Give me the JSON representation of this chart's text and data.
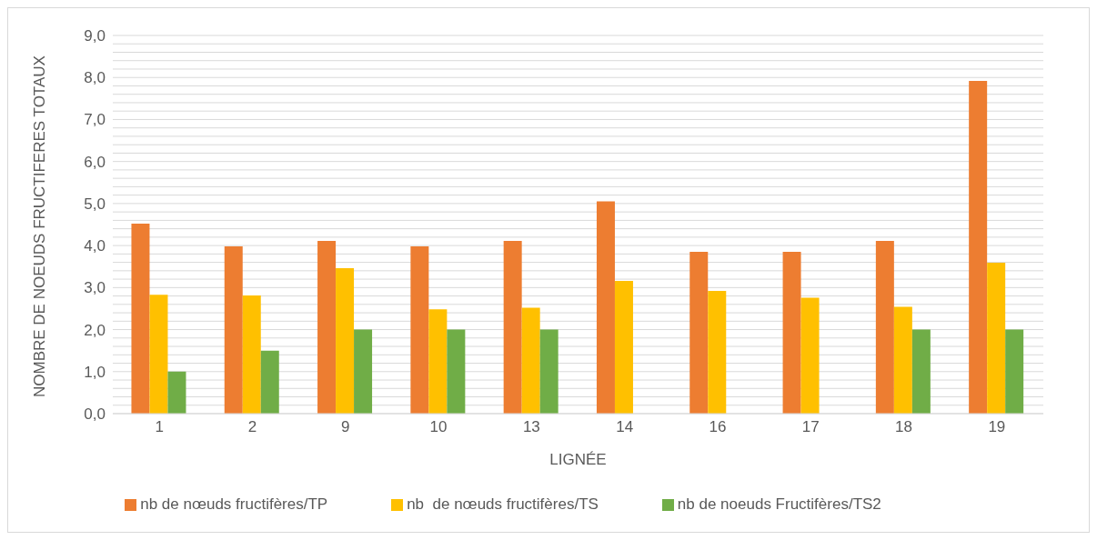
{
  "chart_data": {
    "type": "bar",
    "xlabel": "LIGNÉE",
    "ylabel": "NOMBRE  DE NOEUDS FRUCTIFERES TOTAUX",
    "categories": [
      "1",
      "2",
      "9",
      "10",
      "13",
      "14",
      "16",
      "17",
      "18",
      "19"
    ],
    "series": [
      {
        "name": "nb de nœuds fructifères/TP",
        "color": "#ed7d31",
        "values": [
          4.52,
          3.98,
          4.11,
          3.98,
          4.11,
          5.05,
          3.85,
          3.85,
          4.11,
          7.92
        ]
      },
      {
        "name": "nb  de nœuds fructifères/TS",
        "color": "#ffc000",
        "values": [
          2.83,
          2.81,
          3.46,
          2.48,
          2.52,
          3.16,
          2.92,
          2.76,
          2.54,
          3.59
        ]
      },
      {
        "name": "nb de noeuds Fructifères/TS2",
        "color": "#70ad47",
        "values": [
          1.0,
          1.5,
          2.0,
          2.0,
          2.0,
          null,
          null,
          null,
          2.0,
          2.0
        ]
      }
    ],
    "ylim": [
      0,
      9
    ],
    "yticks": [
      {
        "value": 0,
        "label": "0,0"
      },
      {
        "value": 0.2,
        "label": null
      },
      {
        "value": 0.4,
        "label": null
      },
      {
        "value": 0.6,
        "label": null
      },
      {
        "value": 0.8,
        "label": null
      },
      {
        "value": 1,
        "label": "1,0"
      },
      {
        "value": 1.2,
        "label": null
      },
      {
        "value": 1.4,
        "label": null
      },
      {
        "value": 1.6,
        "label": null
      },
      {
        "value": 1.8,
        "label": null
      },
      {
        "value": 2,
        "label": "2,0"
      },
      {
        "value": 2.2,
        "label": null
      },
      {
        "value": 2.4,
        "label": null
      },
      {
        "value": 2.6,
        "label": null
      },
      {
        "value": 2.8,
        "label": null
      },
      {
        "value": 3,
        "label": "3,0"
      },
      {
        "value": 3.2,
        "label": null
      },
      {
        "value": 3.4,
        "label": null
      },
      {
        "value": 3.6,
        "label": null
      },
      {
        "value": 3.8,
        "label": null
      },
      {
        "value": 4,
        "label": "4,0"
      },
      {
        "value": 4.2,
        "label": null
      },
      {
        "value": 4.4,
        "label": null
      },
      {
        "value": 4.6,
        "label": null
      },
      {
        "value": 4.8,
        "label": null
      },
      {
        "value": 5,
        "label": "5,0"
      },
      {
        "value": 5.2,
        "label": null
      },
      {
        "value": 5.4,
        "label": null
      },
      {
        "value": 5.6,
        "label": null
      },
      {
        "value": 5.8,
        "label": null
      },
      {
        "value": 6,
        "label": "6,0"
      },
      {
        "value": 6.2,
        "label": null
      },
      {
        "value": 6.4,
        "label": null
      },
      {
        "value": 6.6,
        "label": null
      },
      {
        "value": 6.8,
        "label": null
      },
      {
        "value": 7,
        "label": "7,0"
      },
      {
        "value": 7.2,
        "label": null
      },
      {
        "value": 7.4,
        "label": null
      },
      {
        "value": 7.6,
        "label": null
      },
      {
        "value": 7.8,
        "label": null
      },
      {
        "value": 8,
        "label": "8,0"
      },
      {
        "value": 8.2,
        "label": null
      },
      {
        "value": 8.4,
        "label": null
      },
      {
        "value": 8.6,
        "label": null
      },
      {
        "value": 8.8,
        "label": null
      },
      {
        "value": 9,
        "label": "9,0"
      }
    ],
    "grid": "y",
    "legend": "bottom"
  }
}
